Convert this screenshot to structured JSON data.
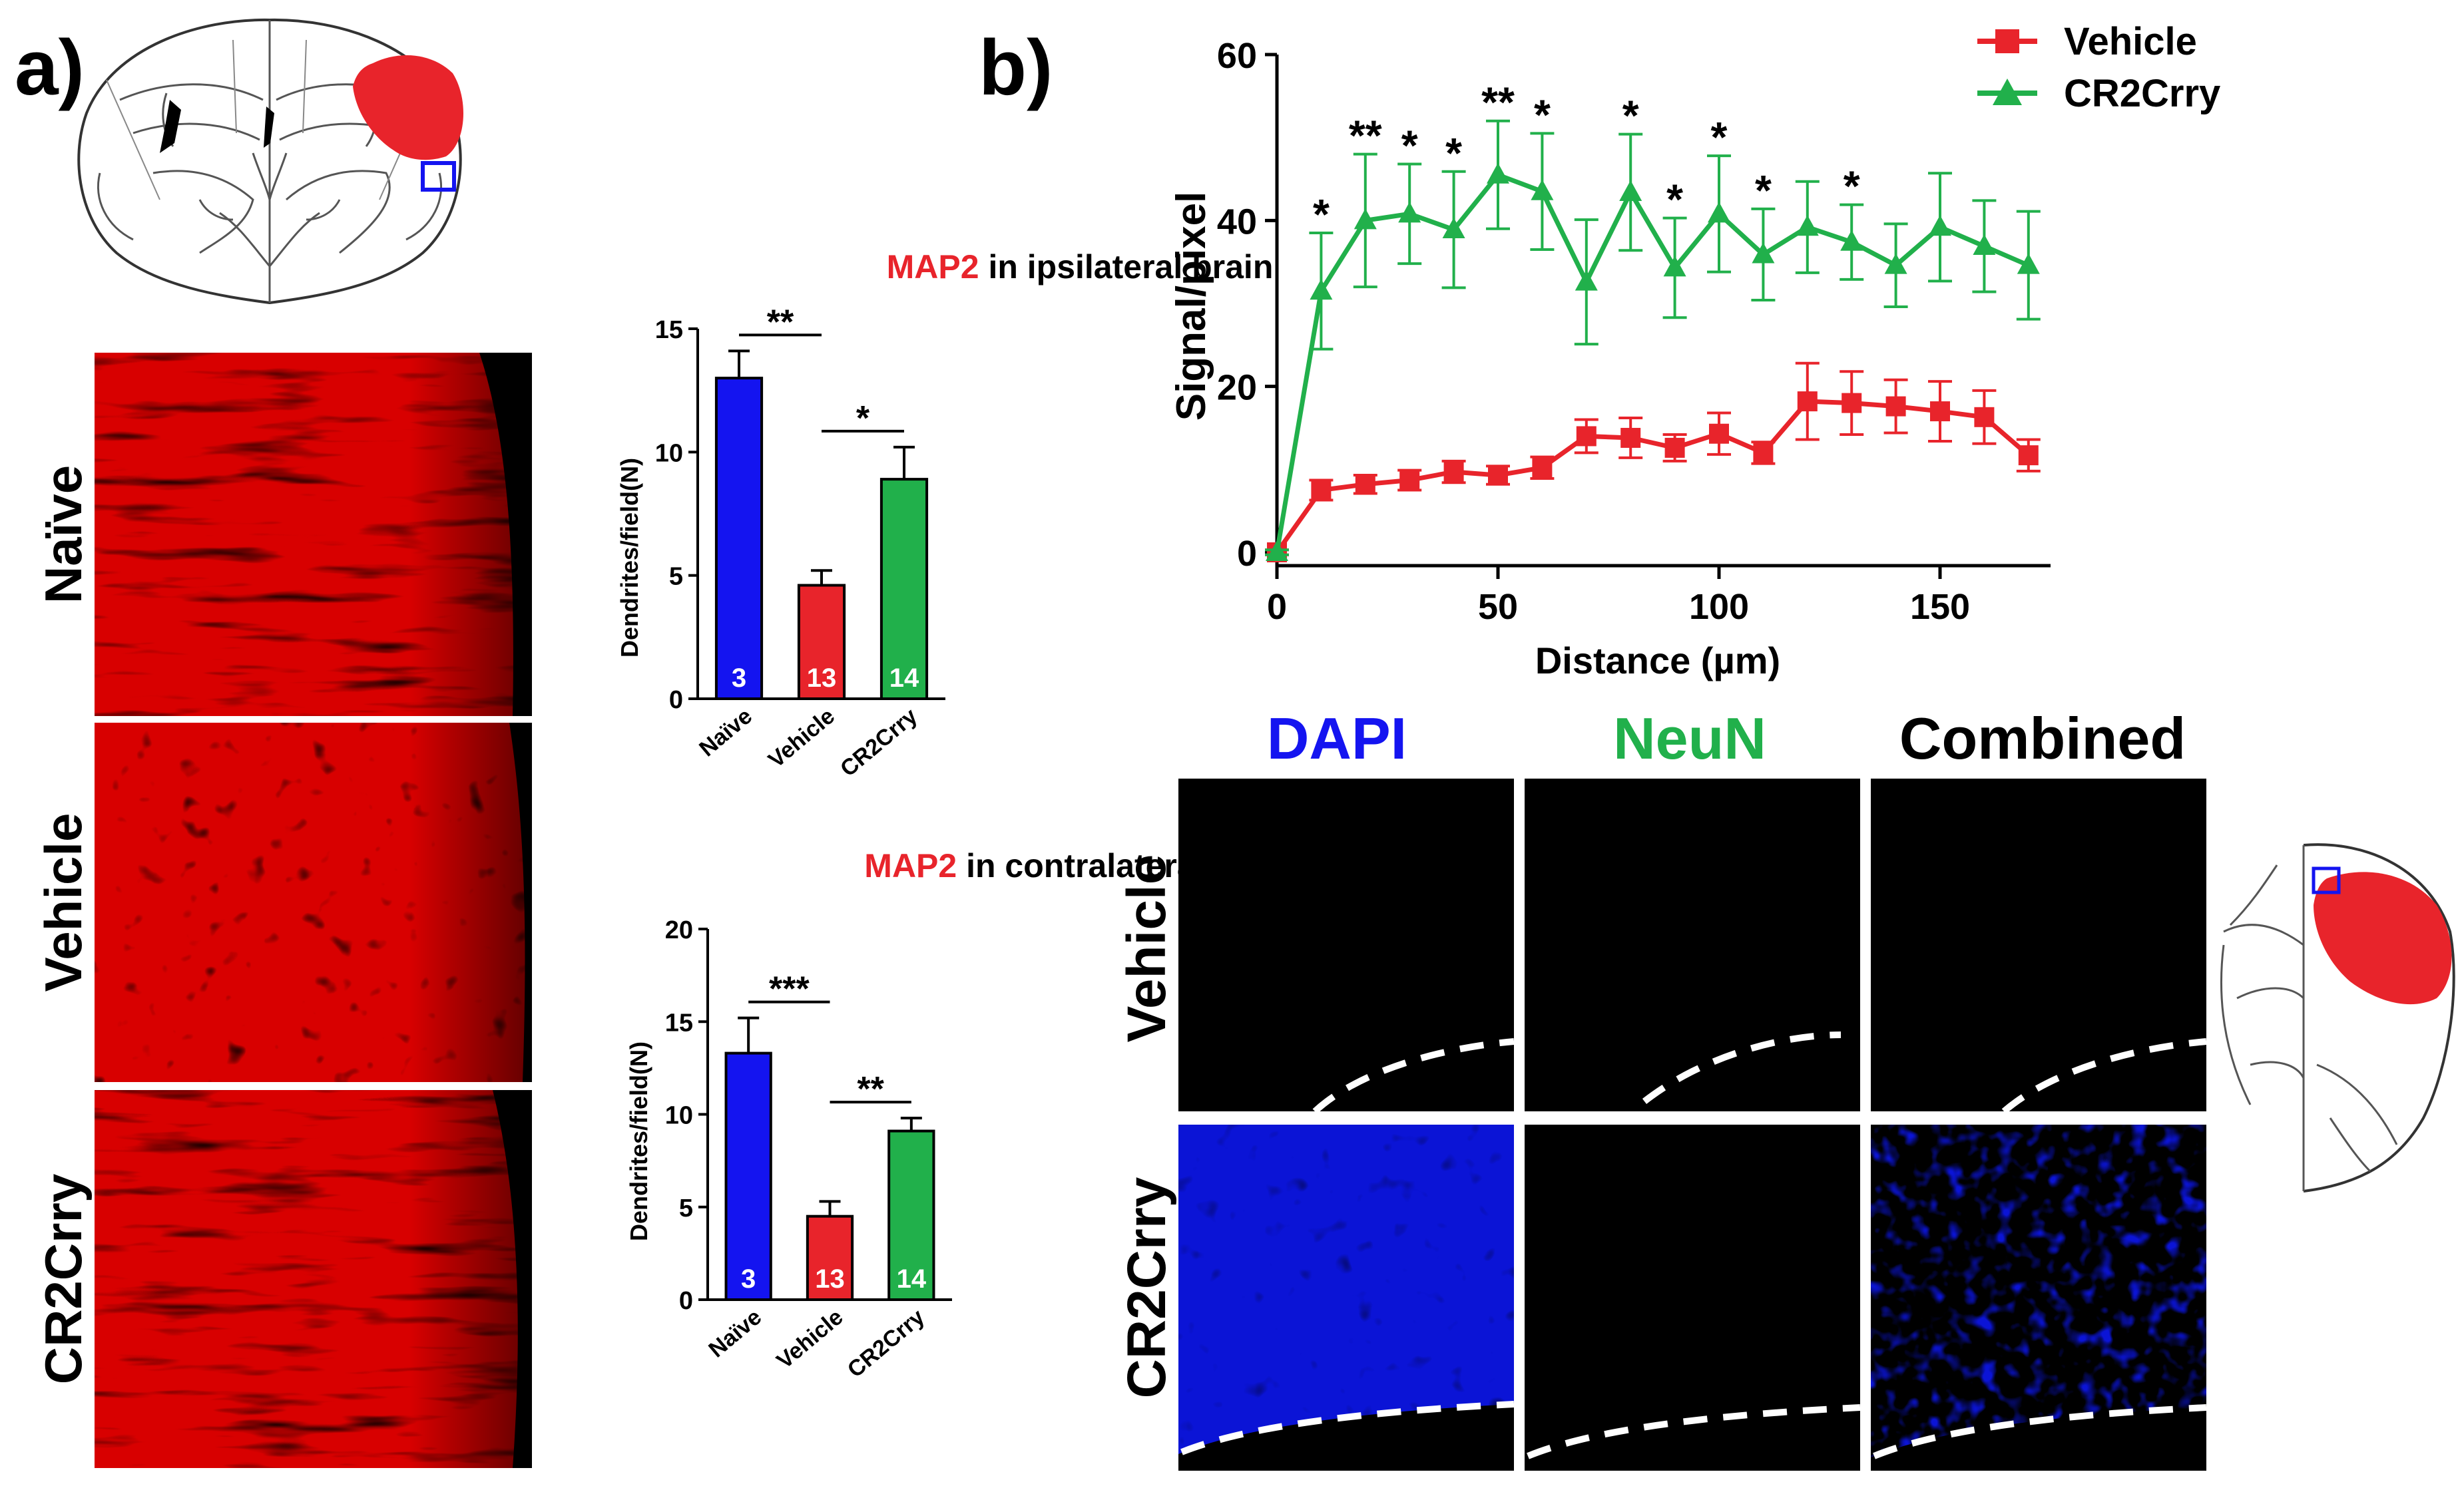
{
  "panel_labels": {
    "a": "a)",
    "b": "b)"
  },
  "colors": {
    "red": "#e8242b",
    "green": "#21b04b",
    "blue": "#1414f0",
    "black": "#000000",
    "tissue_red": "#d80000",
    "dapi_blue": "#0b14d6",
    "neun_green": "#28c828"
  },
  "panel_a": {
    "row_labels": [
      "Naïve",
      "Vehicle",
      "CR2Crry"
    ]
  },
  "panel_b": {
    "column_headers": [
      "DAPI",
      "NeuN",
      "Combined"
    ],
    "row_labels": [
      "Vehicle",
      "CR2Crry"
    ]
  },
  "chart_data": [
    {
      "type": "bar",
      "title_highlight": "MAP2",
      "title_rest": " in ipsilateral brain",
      "ylabel": "Dendrites/field(N)",
      "xlabel": "",
      "categories": [
        "Naïve",
        "Vehicle",
        "CR2Crry"
      ],
      "values": [
        13.0,
        4.6,
        8.9
      ],
      "errors": [
        1.1,
        0.6,
        1.3
      ],
      "n_labels": [
        "3",
        "13",
        "14"
      ],
      "bar_colors": [
        "#1414f0",
        "#e8242b",
        "#21b04b"
      ],
      "ylim": [
        0,
        15
      ],
      "yticks": [
        "0",
        "5",
        "10",
        "15"
      ],
      "significance": [
        {
          "from": 0,
          "to": 1,
          "label": "**"
        },
        {
          "from": 1,
          "to": 2,
          "label": "*"
        }
      ]
    },
    {
      "type": "bar",
      "title_highlight": "MAP2",
      "title_rest": " in contralateral brain",
      "ylabel": "Dendrites/field(N)",
      "xlabel": "",
      "categories": [
        "Naïve",
        "Vehicle",
        "CR2Crry"
      ],
      "values": [
        13.3,
        4.5,
        9.1
      ],
      "errors": [
        1.9,
        0.8,
        0.7
      ],
      "n_labels": [
        "3",
        "13",
        "14"
      ],
      "bar_colors": [
        "#1414f0",
        "#e8242b",
        "#21b04b"
      ],
      "ylim": [
        0,
        20
      ],
      "yticks": [
        "0",
        "5",
        "10",
        "15",
        "20"
      ],
      "significance": [
        {
          "from": 0,
          "to": 1,
          "label": "***"
        },
        {
          "from": 1,
          "to": 2,
          "label": "**"
        }
      ]
    },
    {
      "type": "line",
      "title": "",
      "xlabel": "Distance (µm)",
      "ylabel": "Signal/pixel",
      "xlim": [
        0,
        175
      ],
      "ylim": [
        0,
        60
      ],
      "xticks": [
        0,
        50,
        100,
        150
      ],
      "yticks": [
        0,
        20,
        40,
        60
      ],
      "x": [
        0,
        10,
        20,
        30,
        40,
        50,
        60,
        70,
        80,
        90,
        100,
        110,
        120,
        130,
        140,
        150,
        160,
        170
      ],
      "series": [
        {
          "name": "Vehicle",
          "color": "#e8242b",
          "marker": "square",
          "values": [
            0,
            7.5,
            8.2,
            8.7,
            9.7,
            9.3,
            10.2,
            14.0,
            13.8,
            12.6,
            14.3,
            12.0,
            18.2,
            18.0,
            17.6,
            17.0,
            16.3,
            11.7
          ],
          "errors": [
            0.3,
            1.2,
            1.1,
            1.2,
            1.3,
            1.1,
            1.3,
            2.0,
            2.4,
            1.6,
            2.5,
            1.3,
            4.6,
            3.8,
            3.2,
            3.6,
            3.2,
            1.9
          ]
        },
        {
          "name": "CR2Crry",
          "color": "#21b04b",
          "marker": "triangle",
          "values": [
            0,
            31.5,
            40.0,
            40.8,
            38.9,
            45.5,
            43.5,
            32.6,
            43.4,
            34.3,
            40.8,
            35.9,
            39.2,
            37.4,
            34.6,
            39.2,
            36.9,
            34.6
          ],
          "errors": [
            0.3,
            7.0,
            8.0,
            6.0,
            7.0,
            6.5,
            7.0,
            7.5,
            7.0,
            6.0,
            7.0,
            5.5,
            5.5,
            4.5,
            5.0,
            6.5,
            5.5,
            6.5
          ]
        }
      ],
      "significance": [
        {
          "x": 10,
          "label": "*"
        },
        {
          "x": 20,
          "label": "**"
        },
        {
          "x": 30,
          "label": "*"
        },
        {
          "x": 40,
          "label": "*"
        },
        {
          "x": 50,
          "label": "**"
        },
        {
          "x": 60,
          "label": "*"
        },
        {
          "x": 80,
          "label": "*"
        },
        {
          "x": 90,
          "label": "*"
        },
        {
          "x": 100,
          "label": "*"
        },
        {
          "x": 110,
          "label": "*"
        },
        {
          "x": 130,
          "label": "*"
        }
      ],
      "legend_position": "top-right"
    }
  ]
}
